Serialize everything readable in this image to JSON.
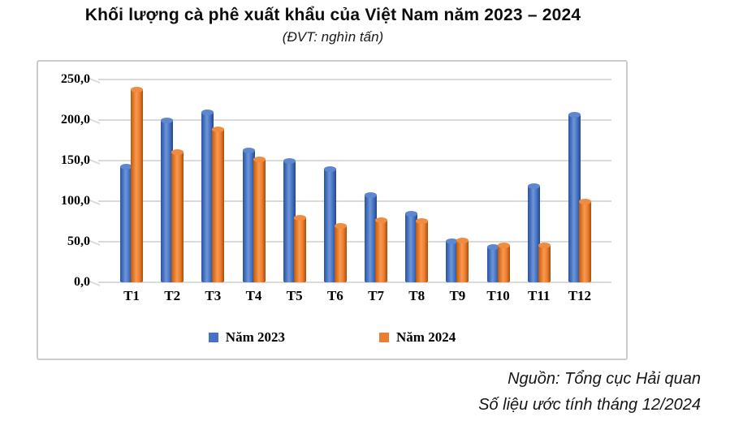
{
  "title": "Khối lượng cà phê xuất khẩu của Việt Nam năm 2023 – 2024",
  "subtitle": "(ĐVT: nghìn tấn)",
  "source": {
    "line1": "Nguồn: Tổng cục Hải quan",
    "line2": "Số liệu ước tính tháng 12/2024"
  },
  "colors": {
    "series_2023": "#4472C4",
    "series_2024": "#ED7D31",
    "gridline": "#DADADA",
    "chart_border": "#CCCCCC"
  },
  "chart_data": {
    "type": "bar",
    "style": "3d-cylinder-clustered",
    "title": "Khối lượng cà phê xuất khẩu của Việt Nam năm 2023 – 2024",
    "subtitle": "(ĐVT: nghìn tấn)",
    "xlabel": "",
    "ylabel": "nghìn tấn",
    "categories": [
      "T1",
      "T2",
      "T3",
      "T4",
      "T5",
      "T6",
      "T7",
      "T8",
      "T9",
      "T10",
      "T11",
      "T12"
    ],
    "series": [
      {
        "name": "Năm 2023",
        "color": "#4472C4",
        "values": [
          143,
          200,
          210,
          163,
          150,
          140,
          108,
          85,
          51,
          44,
          119,
          207
        ]
      },
      {
        "name": "Năm 2024",
        "color": "#ED7D31",
        "values": [
          238,
          161,
          189,
          152,
          80,
          70,
          77,
          76,
          52,
          46,
          46,
          100
        ]
      }
    ],
    "ylim": [
      0,
      250
    ],
    "ytick_step": 50,
    "ytick_labels": [
      "0,0",
      "50,0",
      "100,0",
      "150,0",
      "200,0",
      "250,0"
    ],
    "grid": true,
    "legend_position": "bottom"
  }
}
